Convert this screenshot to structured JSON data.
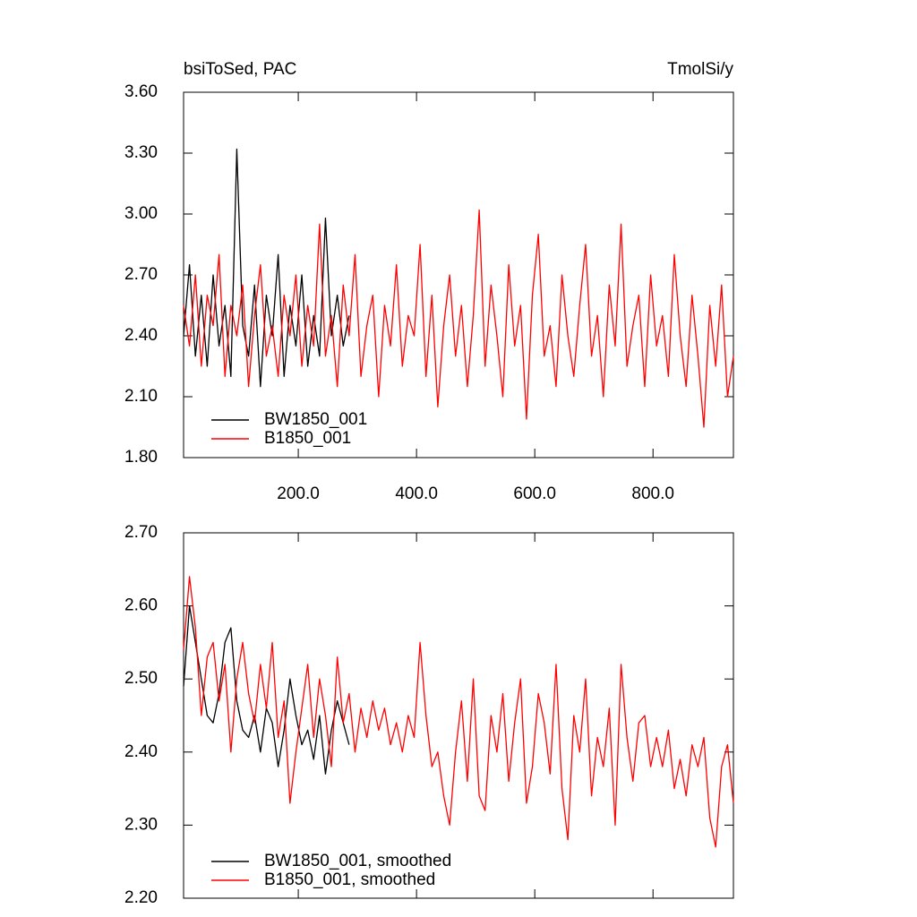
{
  "chart_data": [
    {
      "type": "line",
      "title": "bsiToSed, PAC",
      "units": "TmolSi/y",
      "xlim": [
        6,
        936
      ],
      "xticks": [
        {
          "value": 200,
          "label": "200.0"
        },
        {
          "value": 400,
          "label": "400.0"
        },
        {
          "value": 600,
          "label": "600.0"
        },
        {
          "value": 800,
          "label": "800.0"
        }
      ],
      "ylim": [
        1.8,
        3.6
      ],
      "yticks": [
        {
          "value": 1.8,
          "label": "1.80"
        },
        {
          "value": 2.1,
          "label": "2.10"
        },
        {
          "value": 2.4,
          "label": "2.40"
        },
        {
          "value": 2.7,
          "label": "2.70"
        },
        {
          "value": 3.0,
          "label": "3.00"
        },
        {
          "value": 3.3,
          "label": "3.30"
        },
        {
          "value": 3.6,
          "label": "3.60"
        }
      ],
      "show_xtick_labels": true,
      "legend": "lower left",
      "series": [
        {
          "name": "BW1850_001",
          "color": "#000000",
          "x": [
            6,
            16,
            26,
            36,
            46,
            56,
            66,
            76,
            86,
            96,
            106,
            116,
            126,
            136,
            146,
            156,
            166,
            176,
            186,
            196,
            206,
            216,
            226,
            236,
            246,
            256,
            266,
            276,
            286
          ],
          "values": [
            2.4,
            2.75,
            2.3,
            2.6,
            2.25,
            2.7,
            2.35,
            2.55,
            2.2,
            3.32,
            2.45,
            2.3,
            2.65,
            2.15,
            2.6,
            2.4,
            2.8,
            2.2,
            2.55,
            2.35,
            2.7,
            2.25,
            2.5,
            2.3,
            2.98,
            2.4,
            2.6,
            2.35,
            2.5
          ]
        },
        {
          "name": "B1850_001",
          "color": "#ff0000",
          "x": [
            6,
            16,
            26,
            36,
            46,
            56,
            66,
            76,
            86,
            96,
            106,
            116,
            126,
            136,
            146,
            156,
            166,
            176,
            186,
            196,
            206,
            216,
            226,
            236,
            246,
            256,
            266,
            276,
            286,
            296,
            306,
            316,
            326,
            336,
            346,
            356,
            366,
            376,
            386,
            396,
            406,
            416,
            426,
            436,
            446,
            456,
            466,
            476,
            486,
            496,
            506,
            516,
            526,
            536,
            546,
            556,
            566,
            576,
            586,
            596,
            606,
            616,
            626,
            636,
            646,
            656,
            666,
            676,
            686,
            696,
            706,
            716,
            726,
            736,
            746,
            756,
            766,
            776,
            786,
            796,
            806,
            816,
            826,
            836,
            846,
            856,
            866,
            876,
            886,
            896,
            906,
            916,
            926,
            936
          ],
          "values": [
            2.55,
            2.35,
            2.7,
            2.25,
            2.6,
            2.45,
            2.8,
            2.2,
            2.55,
            2.4,
            2.65,
            2.15,
            2.5,
            2.75,
            2.3,
            2.45,
            2.2,
            2.6,
            2.4,
            2.7,
            2.25,
            2.55,
            2.35,
            2.95,
            2.3,
            2.5,
            2.15,
            2.65,
            2.4,
            2.8,
            2.2,
            2.45,
            2.6,
            2.1,
            2.55,
            2.35,
            2.75,
            2.25,
            2.5,
            2.4,
            2.85,
            2.2,
            2.6,
            2.05,
            2.45,
            2.7,
            2.3,
            2.55,
            2.15,
            2.5,
            3.02,
            2.25,
            2.65,
            2.4,
            2.1,
            2.75,
            2.35,
            2.55,
            1.99,
            2.6,
            2.9,
            2.3,
            2.45,
            2.15,
            2.7,
            2.4,
            2.2,
            2.55,
            2.85,
            2.3,
            2.5,
            2.1,
            2.65,
            2.35,
            2.95,
            2.25,
            2.45,
            2.6,
            2.15,
            2.7,
            2.35,
            2.5,
            2.2,
            2.8,
            2.4,
            2.15,
            2.6,
            2.3,
            1.95,
            2.55,
            2.25,
            2.65,
            2.1,
            2.3
          ]
        }
      ]
    },
    {
      "type": "line",
      "xlim": [
        6,
        936
      ],
      "xticks": [
        200,
        400,
        600,
        800
      ],
      "ylim": [
        2.2,
        2.7
      ],
      "yticks": [
        {
          "value": 2.2,
          "label": "2.20"
        },
        {
          "value": 2.3,
          "label": "2.30"
        },
        {
          "value": 2.4,
          "label": "2.40"
        },
        {
          "value": 2.5,
          "label": "2.50"
        },
        {
          "value": 2.6,
          "label": "2.60"
        },
        {
          "value": 2.7,
          "label": "2.70"
        }
      ],
      "show_xtick_labels": false,
      "legend": "lower left",
      "series": [
        {
          "name": "BW1850_001, smoothed",
          "color": "#000000",
          "x": [
            6,
            16,
            26,
            36,
            46,
            56,
            66,
            76,
            86,
            96,
            106,
            116,
            126,
            136,
            146,
            156,
            166,
            176,
            186,
            196,
            206,
            216,
            226,
            236,
            246,
            256,
            266,
            276,
            286
          ],
          "values": [
            2.49,
            2.6,
            2.55,
            2.5,
            2.45,
            2.44,
            2.48,
            2.55,
            2.57,
            2.47,
            2.43,
            2.42,
            2.45,
            2.4,
            2.46,
            2.44,
            2.38,
            2.43,
            2.5,
            2.45,
            2.41,
            2.43,
            2.39,
            2.45,
            2.37,
            2.43,
            2.47,
            2.44,
            2.41
          ]
        },
        {
          "name": "B1850_001, smoothed",
          "color": "#ff0000",
          "x": [
            6,
            16,
            26,
            36,
            46,
            56,
            66,
            76,
            86,
            96,
            106,
            116,
            126,
            136,
            146,
            156,
            166,
            176,
            186,
            196,
            206,
            216,
            226,
            236,
            246,
            256,
            266,
            276,
            286,
            296,
            306,
            316,
            326,
            336,
            346,
            356,
            366,
            376,
            386,
            396,
            406,
            416,
            426,
            436,
            446,
            456,
            466,
            476,
            486,
            496,
            506,
            516,
            526,
            536,
            546,
            556,
            566,
            576,
            586,
            596,
            606,
            616,
            626,
            636,
            646,
            656,
            666,
            676,
            686,
            696,
            706,
            716,
            726,
            736,
            746,
            756,
            766,
            776,
            786,
            796,
            806,
            816,
            826,
            836,
            846,
            856,
            866,
            876,
            886,
            896,
            906,
            916,
            926,
            936
          ],
          "values": [
            2.54,
            2.64,
            2.57,
            2.45,
            2.53,
            2.55,
            2.47,
            2.52,
            2.4,
            2.5,
            2.55,
            2.48,
            2.44,
            2.52,
            2.46,
            2.55,
            2.42,
            2.47,
            2.33,
            2.4,
            2.46,
            2.52,
            2.42,
            2.5,
            2.45,
            2.38,
            2.53,
            2.44,
            2.48,
            2.4,
            2.46,
            2.42,
            2.47,
            2.43,
            2.46,
            2.41,
            2.44,
            2.4,
            2.45,
            2.42,
            2.55,
            2.45,
            2.38,
            2.4,
            2.34,
            2.3,
            2.4,
            2.47,
            2.36,
            2.5,
            2.34,
            2.32,
            2.45,
            2.4,
            2.48,
            2.36,
            2.44,
            2.5,
            2.33,
            2.38,
            2.48,
            2.44,
            2.37,
            2.52,
            2.35,
            2.28,
            2.45,
            2.4,
            2.5,
            2.34,
            2.42,
            2.38,
            2.46,
            2.3,
            2.52,
            2.42,
            2.36,
            2.44,
            2.45,
            2.38,
            2.42,
            2.38,
            2.43,
            2.35,
            2.39,
            2.34,
            2.41,
            2.38,
            2.42,
            2.31,
            2.27,
            2.38,
            2.41,
            2.33
          ]
        }
      ]
    }
  ]
}
